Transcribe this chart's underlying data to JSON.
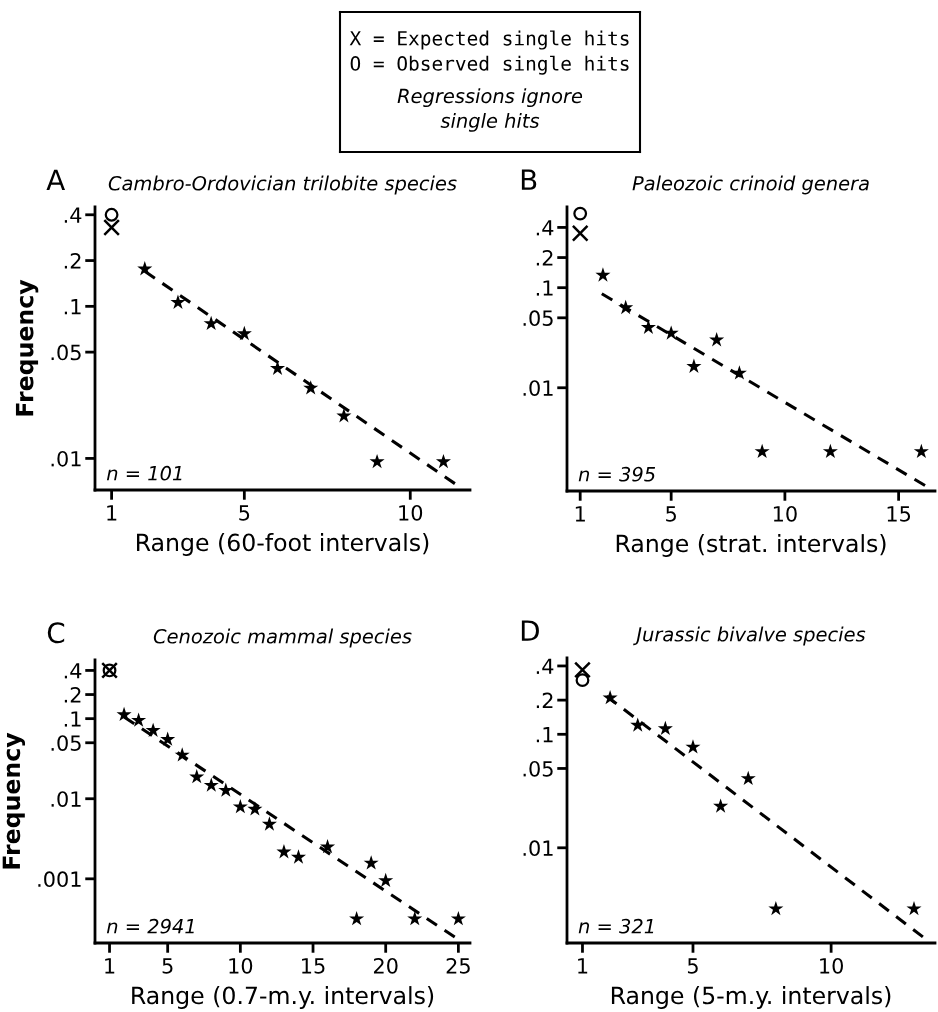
{
  "chart_data": [
    {
      "type": "other",
      "annotations": [
        "X = Expected single hits",
        "O = Observed single hits",
        "Regressions ignore\nsingle hits"
      ]
    },
    {
      "type": "scatter",
      "title": "Cambro-Ordovician trilobite species",
      "xlabel": "Range (60-foot intervals)",
      "ylabel": "Frequency",
      "annotations": [
        "A",
        "n = 101"
      ],
      "log": "y",
      "xlim": [
        0.5,
        11.8
      ],
      "ylim": [
        0.0062,
        0.45
      ],
      "xticks": [
        1,
        5,
        10
      ],
      "yticks": [
        {
          "value": 0.01,
          "label": ".01"
        },
        {
          "value": 0.05,
          "label": ".05"
        },
        {
          "value": 0.1,
          "label": ".1"
        },
        {
          "value": 0.2,
          "label": ".2"
        },
        {
          "value": 0.4,
          "label": ".4"
        }
      ],
      "series": [
        {
          "type": "scatter",
          "marker": "star",
          "color": "#000000",
          "x": [
            2,
            3,
            4,
            5,
            6,
            7,
            8,
            9,
            11
          ],
          "values": [
            0.176,
            0.106,
            0.077,
            0.066,
            0.039,
            0.029,
            0.019,
            0.0095,
            0.0095
          ]
        },
        {
          "type": "scatter",
          "marker": "cross",
          "color": "#000000",
          "x": [
            1
          ],
          "values": [
            0.33
          ]
        },
        {
          "type": "scatter",
          "marker": "circle",
          "color": "#000000",
          "x": [
            1
          ],
          "values": [
            0.4
          ]
        },
        {
          "type": "line",
          "line_style": "dashed",
          "color": "#000000",
          "x": [
            2,
            11.4
          ],
          "values": [
            0.17,
            0.0067
          ]
        }
      ]
    },
    {
      "type": "scatter",
      "title": "Paleozoic crinoid genera",
      "xlabel": "Range (strat. intervals)",
      "annotations": [
        "B",
        "n = 395"
      ],
      "log": "y",
      "xlim": [
        0.42,
        16.6
      ],
      "ylim": [
        0.00093,
        0.64
      ],
      "xticks": [
        1,
        5,
        10,
        15
      ],
      "yticks": [
        {
          "value": 0.01,
          "label": ".01"
        },
        {
          "value": 0.05,
          "label": ".05"
        },
        {
          "value": 0.1,
          "label": ".1"
        },
        {
          "value": 0.2,
          "label": ".2"
        },
        {
          "value": 0.4,
          "label": ".4"
        }
      ],
      "series": [
        {
          "type": "scatter",
          "marker": "star",
          "color": "#000000",
          "x": [
            2,
            3,
            4,
            5,
            6,
            7,
            8,
            9,
            12,
            16
          ],
          "values": [
            0.133,
            0.063,
            0.04,
            0.035,
            0.0163,
            0.03,
            0.014,
            0.0023,
            0.0023,
            0.0023
          ]
        },
        {
          "type": "scatter",
          "marker": "cross",
          "color": "#000000",
          "x": [
            1
          ],
          "values": [
            0.35
          ]
        },
        {
          "type": "scatter",
          "marker": "circle",
          "color": "#000000",
          "x": [
            1
          ],
          "values": [
            0.55
          ]
        },
        {
          "type": "line",
          "line_style": "dashed",
          "color": "#000000",
          "x": [
            1.95,
            16.4
          ],
          "values": [
            0.087,
            0.00098
          ]
        }
      ]
    },
    {
      "type": "scatter",
      "title": "Cenozoic mammal species",
      "xlabel": "Range (0.7-m.y. intervals)",
      "ylabel": "Frequency",
      "annotations": [
        "C",
        "n = 2941"
      ],
      "log": "y",
      "xlim": [
        0,
        25.8
      ],
      "ylim": [
        0.000158,
        0.54
      ],
      "xticks": [
        1,
        5,
        10,
        15,
        20,
        25
      ],
      "yticks": [
        {
          "value": 0.001,
          "label": ".001"
        },
        {
          "value": 0.01,
          "label": ".01"
        },
        {
          "value": 0.05,
          "label": ".05"
        },
        {
          "value": 0.1,
          "label": ".1"
        },
        {
          "value": 0.2,
          "label": ".2"
        },
        {
          "value": 0.4,
          "label": ".4"
        }
      ],
      "series": [
        {
          "type": "scatter",
          "marker": "star",
          "color": "#000000",
          "x": [
            2,
            3,
            4,
            5,
            6,
            7,
            8,
            9,
            10,
            11,
            12,
            13,
            14,
            16,
            18,
            19,
            20,
            22,
            25
          ],
          "values": [
            0.112,
            0.095,
            0.071,
            0.055,
            0.035,
            0.0187,
            0.0147,
            0.0127,
            0.0079,
            0.0074,
            0.0048,
            0.00216,
            0.00186,
            0.0025,
            0.000316,
            0.00157,
            0.00095,
            0.000316,
            0.000316
          ]
        },
        {
          "type": "scatter",
          "marker": "circle",
          "color": "#000000",
          "x": [
            1
          ],
          "values": [
            0.4
          ]
        },
        {
          "type": "scatter",
          "marker": "cross",
          "color": "#000000",
          "x": [
            1
          ],
          "values": [
            0.4
          ]
        },
        {
          "type": "line",
          "line_style": "dashed",
          "color": "#000000",
          "x": [
            2,
            25.25
          ],
          "values": [
            0.105,
            0.000163
          ]
        }
      ]
    },
    {
      "type": "scatter",
      "title": "Jurassic bivalve species",
      "xlabel": "Range (5-m.y. intervals)",
      "annotations": [
        "D",
        "n = 321"
      ],
      "log": "y",
      "xlim": [
        0.44,
        13.76
      ],
      "ylim": [
        0.00145,
        0.47
      ],
      "xticks": [
        1,
        5,
        10
      ],
      "yticks": [
        {
          "value": 0.01,
          "label": ".01"
        },
        {
          "value": 0.05,
          "label": ".05"
        },
        {
          "value": 0.1,
          "label": ".1"
        },
        {
          "value": 0.2,
          "label": ".2"
        },
        {
          "value": 0.4,
          "label": ".4"
        }
      ],
      "series": [
        {
          "type": "scatter",
          "marker": "star",
          "color": "#000000",
          "x": [
            2,
            3,
            4,
            5,
            6,
            7,
            8,
            13
          ],
          "values": [
            0.209,
            0.12,
            0.112,
            0.077,
            0.0232,
            0.0407,
            0.0029,
            0.0029
          ]
        },
        {
          "type": "scatter",
          "marker": "cross",
          "color": "#000000",
          "x": [
            1
          ],
          "values": [
            0.37
          ]
        },
        {
          "type": "scatter",
          "marker": "circle",
          "color": "#000000",
          "x": [
            1
          ],
          "values": [
            0.3
          ]
        },
        {
          "type": "line",
          "line_style": "dashed",
          "color": "#000000",
          "x": [
            1.88,
            13.58
          ],
          "values": [
            0.216,
            0.00147
          ]
        }
      ]
    }
  ]
}
